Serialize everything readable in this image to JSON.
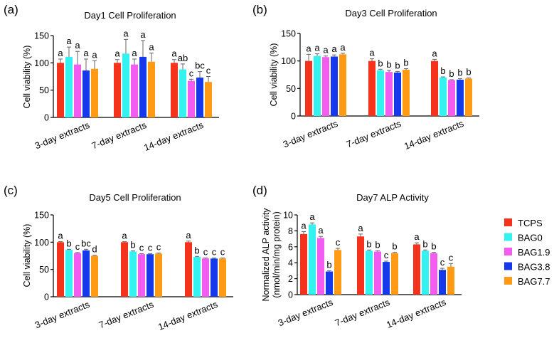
{
  "chart_data": [
    {
      "panel": "(a)",
      "type": "bar",
      "title": "Day1 Cell Proliferation",
      "ylabel": "Cell viability (%)",
      "ylim": [
        0,
        150
      ],
      "yticks": [
        "0",
        "50",
        "100",
        "150"
      ],
      "categories": [
        "3-day extracts",
        "7-day extracts",
        "14-day extracts"
      ],
      "series": [
        {
          "name": "TCPS",
          "values": [
            100,
            100,
            100
          ],
          "errors": [
            7,
            6,
            6
          ]
        },
        {
          "name": "BAG0",
          "values": [
            111,
            117,
            88
          ],
          "errors": [
            18,
            26,
            10
          ]
        },
        {
          "name": "BAG1.9",
          "values": [
            97,
            97,
            67
          ],
          "errors": [
            24,
            10,
            3
          ]
        },
        {
          "name": "BAG3.8",
          "values": [
            86,
            111,
            73
          ],
          "errors": [
            21,
            30,
            11
          ]
        },
        {
          "name": "BAG7.7",
          "values": [
            89,
            102,
            65
          ],
          "errors": [
            15,
            16,
            10
          ]
        }
      ],
      "sig_labels": [
        [
          "a",
          "a",
          "a",
          "a",
          "a"
        ],
        [
          "a",
          "a",
          "a",
          "a",
          "a"
        ],
        [
          "a",
          "ab",
          "c",
          "bc",
          "c"
        ]
      ]
    },
    {
      "panel": "(b)",
      "type": "bar",
      "title": "Day3 Cell Proliferation",
      "ylabel": "Cell viability (%)",
      "ylim": [
        0,
        150
      ],
      "yticks": [
        "0",
        "50",
        "100",
        "150"
      ],
      "categories": [
        "3-day extracts",
        "7-day extracts",
        "14-day extracts"
      ],
      "series": [
        {
          "name": "TCPS",
          "values": [
            100,
            100,
            100
          ],
          "errors": [
            12,
            4,
            3
          ]
        },
        {
          "name": "BAG0",
          "values": [
            109,
            83,
            70
          ],
          "errors": [
            4,
            2,
            1
          ]
        },
        {
          "name": "BAG1.9",
          "values": [
            107,
            80,
            65
          ],
          "errors": [
            2,
            3,
            1
          ]
        },
        {
          "name": "BAG3.8",
          "values": [
            108,
            79,
            66
          ],
          "errors": [
            3,
            2,
            2
          ]
        },
        {
          "name": "BAG7.7",
          "values": [
            112,
            84,
            68
          ],
          "errors": [
            2,
            2,
            1
          ]
        }
      ],
      "sig_labels": [
        [
          "a",
          "a",
          "a",
          "a",
          "a"
        ],
        [
          "a",
          "b",
          "b",
          "b",
          "b"
        ],
        [
          "a",
          "b",
          "b",
          "b",
          "b"
        ]
      ]
    },
    {
      "panel": "(c)",
      "type": "bar",
      "title": "Day5 Cell Proliferation",
      "ylabel": "Cell viability (%)",
      "ylim": [
        0,
        150
      ],
      "yticks": [
        "0",
        "50",
        "100",
        "150"
      ],
      "categories": [
        "3-day extracts",
        "7-day extracts",
        "14-day extracts"
      ],
      "series": [
        {
          "name": "TCPS",
          "values": [
            100,
            100,
            100
          ],
          "errors": [
            1,
            1,
            2
          ]
        },
        {
          "name": "BAG0",
          "values": [
            86,
            83,
            73
          ],
          "errors": [
            1,
            1,
            1
          ]
        },
        {
          "name": "BAG1.9",
          "values": [
            80,
            78,
            70
          ],
          "errors": [
            1,
            1,
            1
          ]
        },
        {
          "name": "BAG3.8",
          "values": [
            85,
            78,
            70
          ],
          "errors": [
            2,
            1,
            1
          ]
        },
        {
          "name": "BAG7.7",
          "values": [
            75,
            79,
            70
          ],
          "errors": [
            1,
            1,
            1
          ]
        }
      ],
      "sig_labels": [
        [
          "a",
          "b",
          "c",
          "bc",
          "d"
        ],
        [
          "a",
          "b",
          "c",
          "c",
          "c"
        ],
        [
          "a",
          "b",
          "c",
          "c",
          "c"
        ]
      ]
    },
    {
      "panel": "(d)",
      "type": "bar",
      "title": "Day7 ALP Activity",
      "ylabel": "Normalized ALP activity\n(nmol/min/mg protein)",
      "ylim": [
        0,
        10
      ],
      "yticks": [
        "0",
        "2",
        "4",
        "6",
        "8",
        "10"
      ],
      "categories": [
        "3-day extracts",
        "7-day extracts",
        "14-day extracts"
      ],
      "series": [
        {
          "name": "TCPS",
          "values": [
            7.6,
            7.3,
            6.3
          ],
          "errors": [
            0.3,
            0.3,
            0.2
          ]
        },
        {
          "name": "BAG0",
          "values": [
            8.8,
            5.5,
            5.5
          ],
          "errors": [
            0.2,
            0.1,
            0.1
          ]
        },
        {
          "name": "BAG1.9",
          "values": [
            7.1,
            5.4,
            5.2
          ],
          "errors": [
            0.2,
            0.1,
            0.1
          ]
        },
        {
          "name": "BAG3.8",
          "values": [
            2.9,
            4.1,
            3.1
          ],
          "errors": [
            0.1,
            0.1,
            0.2
          ]
        },
        {
          "name": "BAG7.7",
          "values": [
            5.6,
            5.2,
            3.5
          ],
          "errors": [
            0.2,
            0.1,
            0.4
          ]
        }
      ],
      "sig_labels": [
        [
          "a",
          "a",
          "a",
          "b",
          "c"
        ],
        [
          "a",
          "b",
          "b",
          "c",
          "b"
        ],
        [
          "a",
          "b",
          "b",
          "c",
          "c"
        ]
      ]
    }
  ],
  "legend": {
    "position": "right of panel (d)",
    "items": [
      {
        "name": "TCPS",
        "color": "#f5331c"
      },
      {
        "name": "BAG0",
        "color": "#33f2f0"
      },
      {
        "name": "BAG1.9",
        "color": "#f25cf0"
      },
      {
        "name": "BAG3.8",
        "color": "#1438ea"
      },
      {
        "name": "BAG7.7",
        "color": "#ff9a14"
      }
    ]
  },
  "colors": {
    "TCPS": "#f5331c",
    "BAG0": "#33f2f0",
    "BAG1.9": "#f25cf0",
    "BAG3.8": "#1438ea",
    "BAG7.7": "#ff9a14",
    "axis": "#000000",
    "errorbar": "#666666"
  }
}
